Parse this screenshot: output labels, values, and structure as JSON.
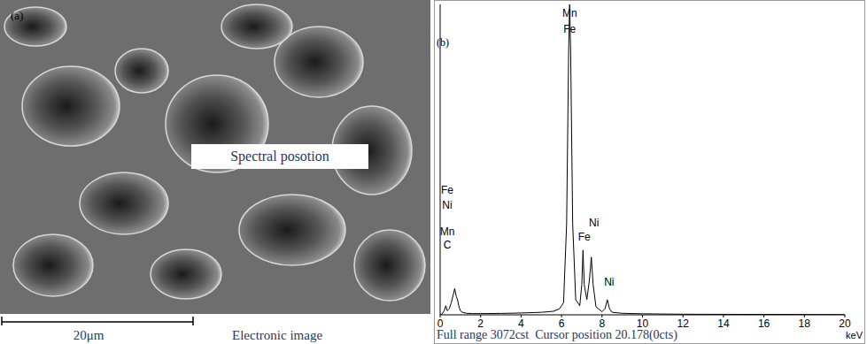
{
  "image_panel": {
    "panel_label": "(a)",
    "box_label": "Spectral posotion",
    "scale_bar": "20μm",
    "caption": "Electronic image"
  },
  "chart_data": {
    "type": "line",
    "panel_label": "(b)",
    "caption": "Full range 3072cst  Cursor position 20.178(0cts)",
    "x_label": "keV",
    "color": "#000000",
    "x": [
      0,
      0.1,
      0.2,
      0.28,
      0.35,
      0.45,
      0.55,
      0.65,
      0.72,
      0.8,
      0.86,
      0.93,
      1.0,
      1.1,
      1.3,
      1.6,
      2,
      3,
      4,
      5,
      5.6,
      5.9,
      6.1,
      6.25,
      6.35,
      6.4,
      6.45,
      6.55,
      6.7,
      6.9,
      7.0,
      7.06,
      7.12,
      7.25,
      7.38,
      7.47,
      7.56,
      7.7,
      8.0,
      8.15,
      8.26,
      8.37,
      8.5,
      9,
      10,
      12,
      14,
      16,
      18,
      20
    ],
    "values": [
      0,
      10,
      40,
      90,
      40,
      60,
      120,
      200,
      260,
      180,
      150,
      80,
      40,
      25,
      15,
      12,
      12,
      14,
      18,
      25,
      35,
      60,
      120,
      900,
      2600,
      3072,
      2600,
      900,
      150,
      90,
      300,
      640,
      300,
      150,
      350,
      570,
      300,
      80,
      30,
      60,
      150,
      60,
      25,
      15,
      10,
      6,
      5,
      4,
      3,
      2
    ],
    "xlim": [
      0,
      20
    ],
    "xticks": [
      0,
      2,
      4,
      6,
      8,
      10,
      12,
      14,
      16,
      18,
      20
    ],
    "ylim": [
      0,
      3072
    ],
    "tick_labels": "x",
    "grid": false,
    "annotations": [
      {
        "text": "Mn",
        "x": 6.4,
        "y": 2990
      },
      {
        "text": "Fe",
        "x": 6.4,
        "y": 2830
      },
      {
        "text": "Fe",
        "x": 0.35,
        "y": 1236
      },
      {
        "text": "Ni",
        "x": 0.35,
        "y": 1088
      },
      {
        "text": "Mn",
        "x": 0.35,
        "y": 827
      },
      {
        "text": "C",
        "x": 0.35,
        "y": 696
      },
      {
        "text": "Fe",
        "x": 7.12,
        "y": 775
      },
      {
        "text": "Ni",
        "x": 7.6,
        "y": 914
      },
      {
        "text": "Ni",
        "x": 8.35,
        "y": 322
      }
    ]
  }
}
